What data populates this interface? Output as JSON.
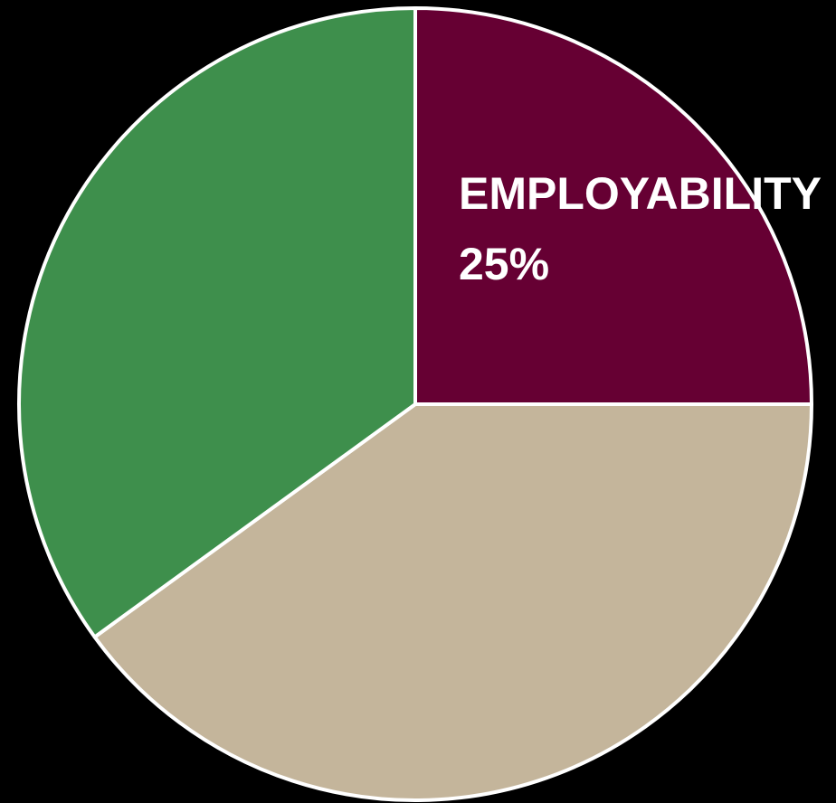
{
  "chart_data": {
    "type": "pie",
    "title": "",
    "slices": [
      {
        "label": "EMPLOYABILITY",
        "value": 25,
        "value_text": "25%",
        "color": "#660033",
        "labeled": true
      },
      {
        "label": "",
        "value": 40,
        "value_text": "",
        "color": "#C4B59B",
        "labeled": false
      },
      {
        "label": "",
        "value": 35,
        "value_text": "",
        "color": "#3E8F4C",
        "labeled": false
      }
    ],
    "start_angle_deg": 0,
    "direction": "clockwise",
    "slice_border_color": "#FFFFFF",
    "background_color": "#000000",
    "legend": "none"
  }
}
